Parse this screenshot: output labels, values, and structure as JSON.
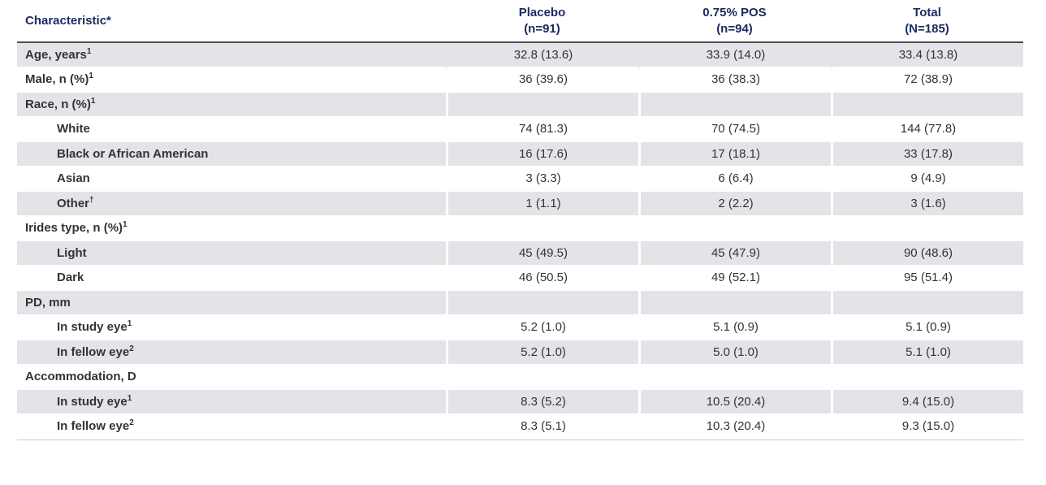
{
  "table": {
    "title_hint": "Baseline characteristics table",
    "header": {
      "characteristic": "Characteristic*",
      "columns": [
        {
          "line1": "Placebo",
          "line2": "(n=91)"
        },
        {
          "line1": "0.75% POS",
          "line2": "(n=94)"
        },
        {
          "line1": "Total",
          "line2": "(N=185)"
        }
      ]
    },
    "rows": [
      {
        "label": "Age, years",
        "sup": "1",
        "values": [
          "32.8 (13.6)",
          "33.9 (14.0)",
          "33.4 (13.8)"
        ]
      },
      {
        "label": "Male, n (%)",
        "sup": "1",
        "values": [
          "36 (39.6)",
          "36 (38.3)",
          "72 (38.9)"
        ]
      },
      {
        "label": "Race, n (%)",
        "sup": "1",
        "values": [
          "",
          "",
          ""
        ]
      },
      {
        "label": "White",
        "values": [
          "74 (81.3)",
          "70 (74.5)",
          "144 (77.8)"
        ]
      },
      {
        "label": "Black or African American",
        "values": [
          "16 (17.6)",
          "17 (18.1)",
          "33 (17.8)"
        ]
      },
      {
        "label": "Asian",
        "values": [
          "3 (3.3)",
          "6 (6.4)",
          "9 (4.9)"
        ]
      },
      {
        "label": "Other",
        "sup": "†",
        "values": [
          "1 (1.1)",
          "2 (2.2)",
          "3 (1.6)"
        ]
      },
      {
        "label": "Irides type, n (%)",
        "sup": "1",
        "values": [
          "",
          "",
          ""
        ]
      },
      {
        "label": "Light",
        "values": [
          "45 (49.5)",
          "45 (47.9)",
          "90 (48.6)"
        ]
      },
      {
        "label": "Dark",
        "values": [
          "46 (50.5)",
          "49 (52.1)",
          "95 (51.4)"
        ]
      },
      {
        "label": "PD, mm",
        "values": [
          "",
          "",
          ""
        ]
      },
      {
        "label": "In study eye",
        "sup": "1",
        "values": [
          "5.2 (1.0)",
          "5.1 (0.9)",
          "5.1 (0.9)"
        ]
      },
      {
        "label": "In fellow eye",
        "sup": "2",
        "values": [
          "5.2 (1.0)",
          "5.0 (1.0)",
          "5.1 (1.0)"
        ]
      },
      {
        "label": "Accommodation, D",
        "values": [
          "",
          "",
          ""
        ]
      },
      {
        "label": "In study eye",
        "sup": "1",
        "values": [
          "8.3 (5.2)",
          "10.5 (20.4)",
          "9.4 (15.0)"
        ]
      },
      {
        "label": "In fellow eye",
        "sup": "2",
        "values": [
          "8.3 (5.1)",
          "10.3 (20.4)",
          "9.3 (15.0)"
        ]
      }
    ]
  },
  "colors": {
    "header_text": "#1b2a5e",
    "row_shade": "#e3e4e8",
    "body_text": "#333333",
    "header_rule": "#4f4f51",
    "bottom_rule": "#c9cacd"
  }
}
